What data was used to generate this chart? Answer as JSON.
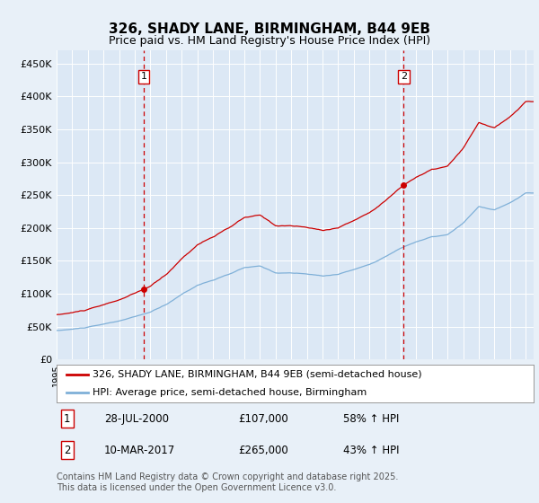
{
  "title": "326, SHADY LANE, BIRMINGHAM, B44 9EB",
  "subtitle": "Price paid vs. HM Land Registry's House Price Index (HPI)",
  "background_color": "#e8f0f8",
  "plot_bg_color": "#dce8f5",
  "grid_color": "#ffffff",
  "ylim": [
    0,
    470000
  ],
  "yticks": [
    0,
    50000,
    100000,
    150000,
    200000,
    250000,
    300000,
    350000,
    400000,
    450000
  ],
  "ytick_labels": [
    "£0",
    "£50K",
    "£100K",
    "£150K",
    "£200K",
    "£250K",
    "£300K",
    "£350K",
    "£400K",
    "£450K"
  ],
  "xlim_start": 1995.0,
  "xlim_end": 2025.5,
  "sale1_x": 2000.58,
  "sale1_y": 107000,
  "sale1_label": "1",
  "sale1_date": "28-JUL-2000",
  "sale1_price": "£107,000",
  "sale1_hpi": "58% ↑ HPI",
  "sale2_x": 2017.19,
  "sale2_y": 265000,
  "sale2_label": "2",
  "sale2_date": "10-MAR-2017",
  "sale2_price": "£265,000",
  "sale2_hpi": "43% ↑ HPI",
  "line1_color": "#cc0000",
  "line2_color": "#7fb0d8",
  "vline_color": "#cc0000",
  "marker_color": "#cc0000",
  "legend_label1": "326, SHADY LANE, BIRMINGHAM, B44 9EB (semi-detached house)",
  "legend_label2": "HPI: Average price, semi-detached house, Birmingham",
  "footnote": "Contains HM Land Registry data © Crown copyright and database right 2025.\nThis data is licensed under the Open Government Licence v3.0.",
  "title_fontsize": 11,
  "subtitle_fontsize": 9,
  "tick_fontsize": 8,
  "legend_fontsize": 8,
  "footnote_fontsize": 7
}
